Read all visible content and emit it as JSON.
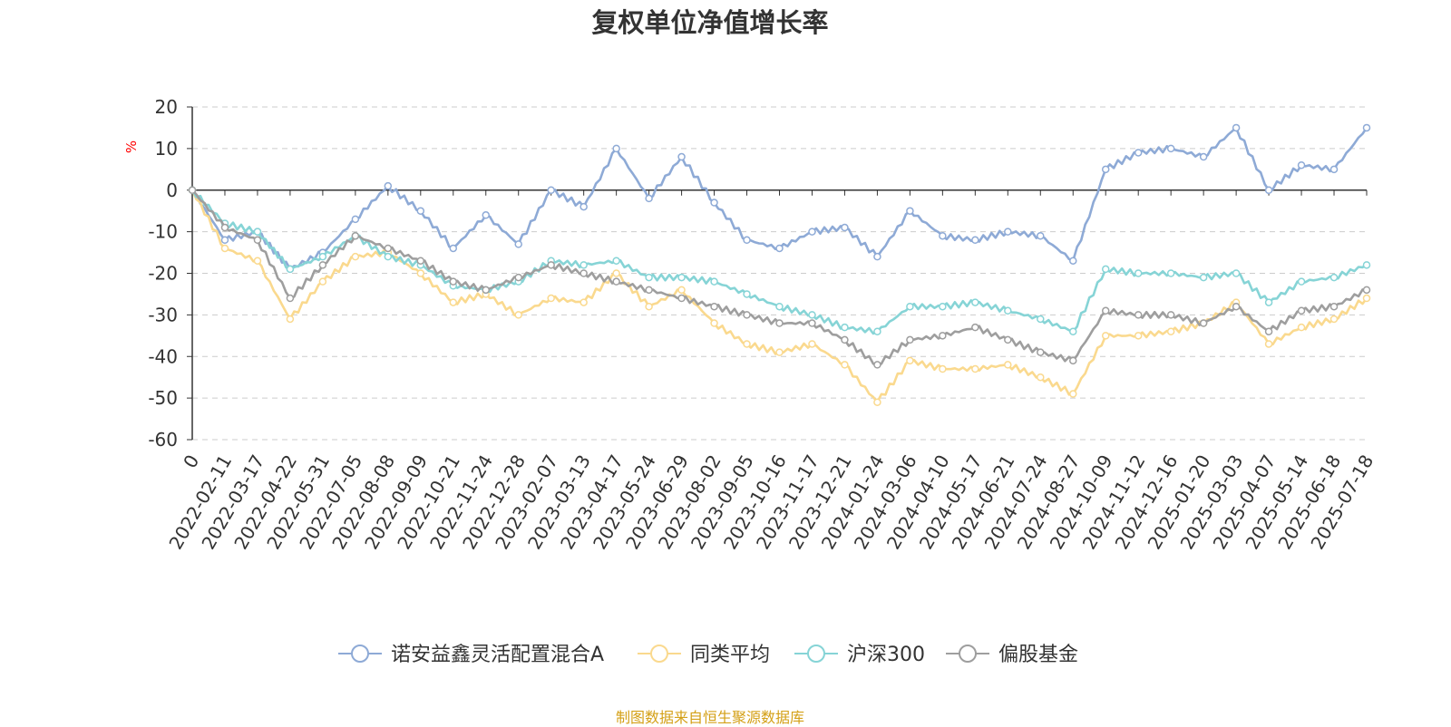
{
  "chart_data": {
    "type": "line",
    "title": "复权单位净值增长率",
    "ylabel": "%",
    "ylim": [
      -60,
      20
    ],
    "yticks": [
      20,
      10,
      0,
      -10,
      -20,
      -30,
      -40,
      -50,
      -60
    ],
    "grid": true,
    "legend_position": "bottom-center",
    "x_tick_labels": [
      "0",
      "2022-02-11",
      "2022-03-17",
      "2022-04-22",
      "2022-05-31",
      "2022-07-05",
      "2022-08-08",
      "2022-09-09",
      "2022-10-21",
      "2022-11-24",
      "2022-12-28",
      "2023-02-07",
      "2023-03-13",
      "2023-04-17",
      "2023-05-24",
      "2023-06-29",
      "2023-08-02",
      "2023-09-05",
      "2023-10-16",
      "2023-11-17",
      "2023-12-21",
      "2024-01-24",
      "2024-03-06",
      "2024-04-10",
      "2024-05-17",
      "2024-06-21",
      "2024-07-24",
      "2024-08-27",
      "2024-10-09",
      "2024-11-12",
      "2024-12-16",
      "2025-01-20",
      "2025-03-03",
      "2025-04-07",
      "2025-05-14",
      "2025-06-18",
      "2025-07-18"
    ],
    "series": [
      {
        "name": "诺安益鑫灵活配置混合A",
        "color": "#8eaad6",
        "values": [
          0,
          -12,
          -10,
          -19,
          -15,
          -7,
          1,
          -5,
          -14,
          -6,
          -13,
          0,
          -4,
          10,
          -2,
          8,
          -3,
          -12,
          -14,
          -10,
          -9,
          -16,
          -5,
          -11,
          -12,
          -10,
          -11,
          -17,
          5,
          9,
          10,
          8,
          15,
          0,
          6,
          5,
          15
        ]
      },
      {
        "name": "同类平均",
        "color": "#fad98e",
        "values": [
          0,
          -14,
          -17,
          -31,
          -22,
          -16,
          -15,
          -20,
          -27,
          -25,
          -30,
          -26,
          -27,
          -20,
          -28,
          -24,
          -32,
          -37,
          -39,
          -37,
          -42,
          -51,
          -41,
          -43,
          -43,
          -42,
          -45,
          -49,
          -35,
          -35,
          -34,
          -32,
          -27,
          -37,
          -33,
          -31,
          -26
        ]
      },
      {
        "name": "沪深300",
        "color": "#86d4d6",
        "values": [
          0,
          -8,
          -10,
          -19,
          -16,
          -11,
          -16,
          -18,
          -23,
          -24,
          -22,
          -17,
          -18,
          -17,
          -21,
          -21,
          -22,
          -25,
          -28,
          -30,
          -33,
          -34,
          -28,
          -28,
          -27,
          -29,
          -31,
          -34,
          -19,
          -20,
          -20,
          -21,
          -20,
          -27,
          -22,
          -21,
          -18
        ]
      },
      {
        "name": "偏股基金",
        "color": "#9e9e9e",
        "values": [
          0,
          -9,
          -12,
          -26,
          -18,
          -11,
          -14,
          -17,
          -22,
          -24,
          -21,
          -18,
          -20,
          -22,
          -24,
          -26,
          -28,
          -30,
          -32,
          -32,
          -36,
          -42,
          -36,
          -35,
          -33,
          -36,
          -39,
          -41,
          -29,
          -30,
          -30,
          -32,
          -28,
          -34,
          -29,
          -28,
          -24
        ]
      }
    ]
  },
  "footer": {
    "source": "制图数据来自恒生聚源数据库",
    "source_color": "#d4a017"
  }
}
